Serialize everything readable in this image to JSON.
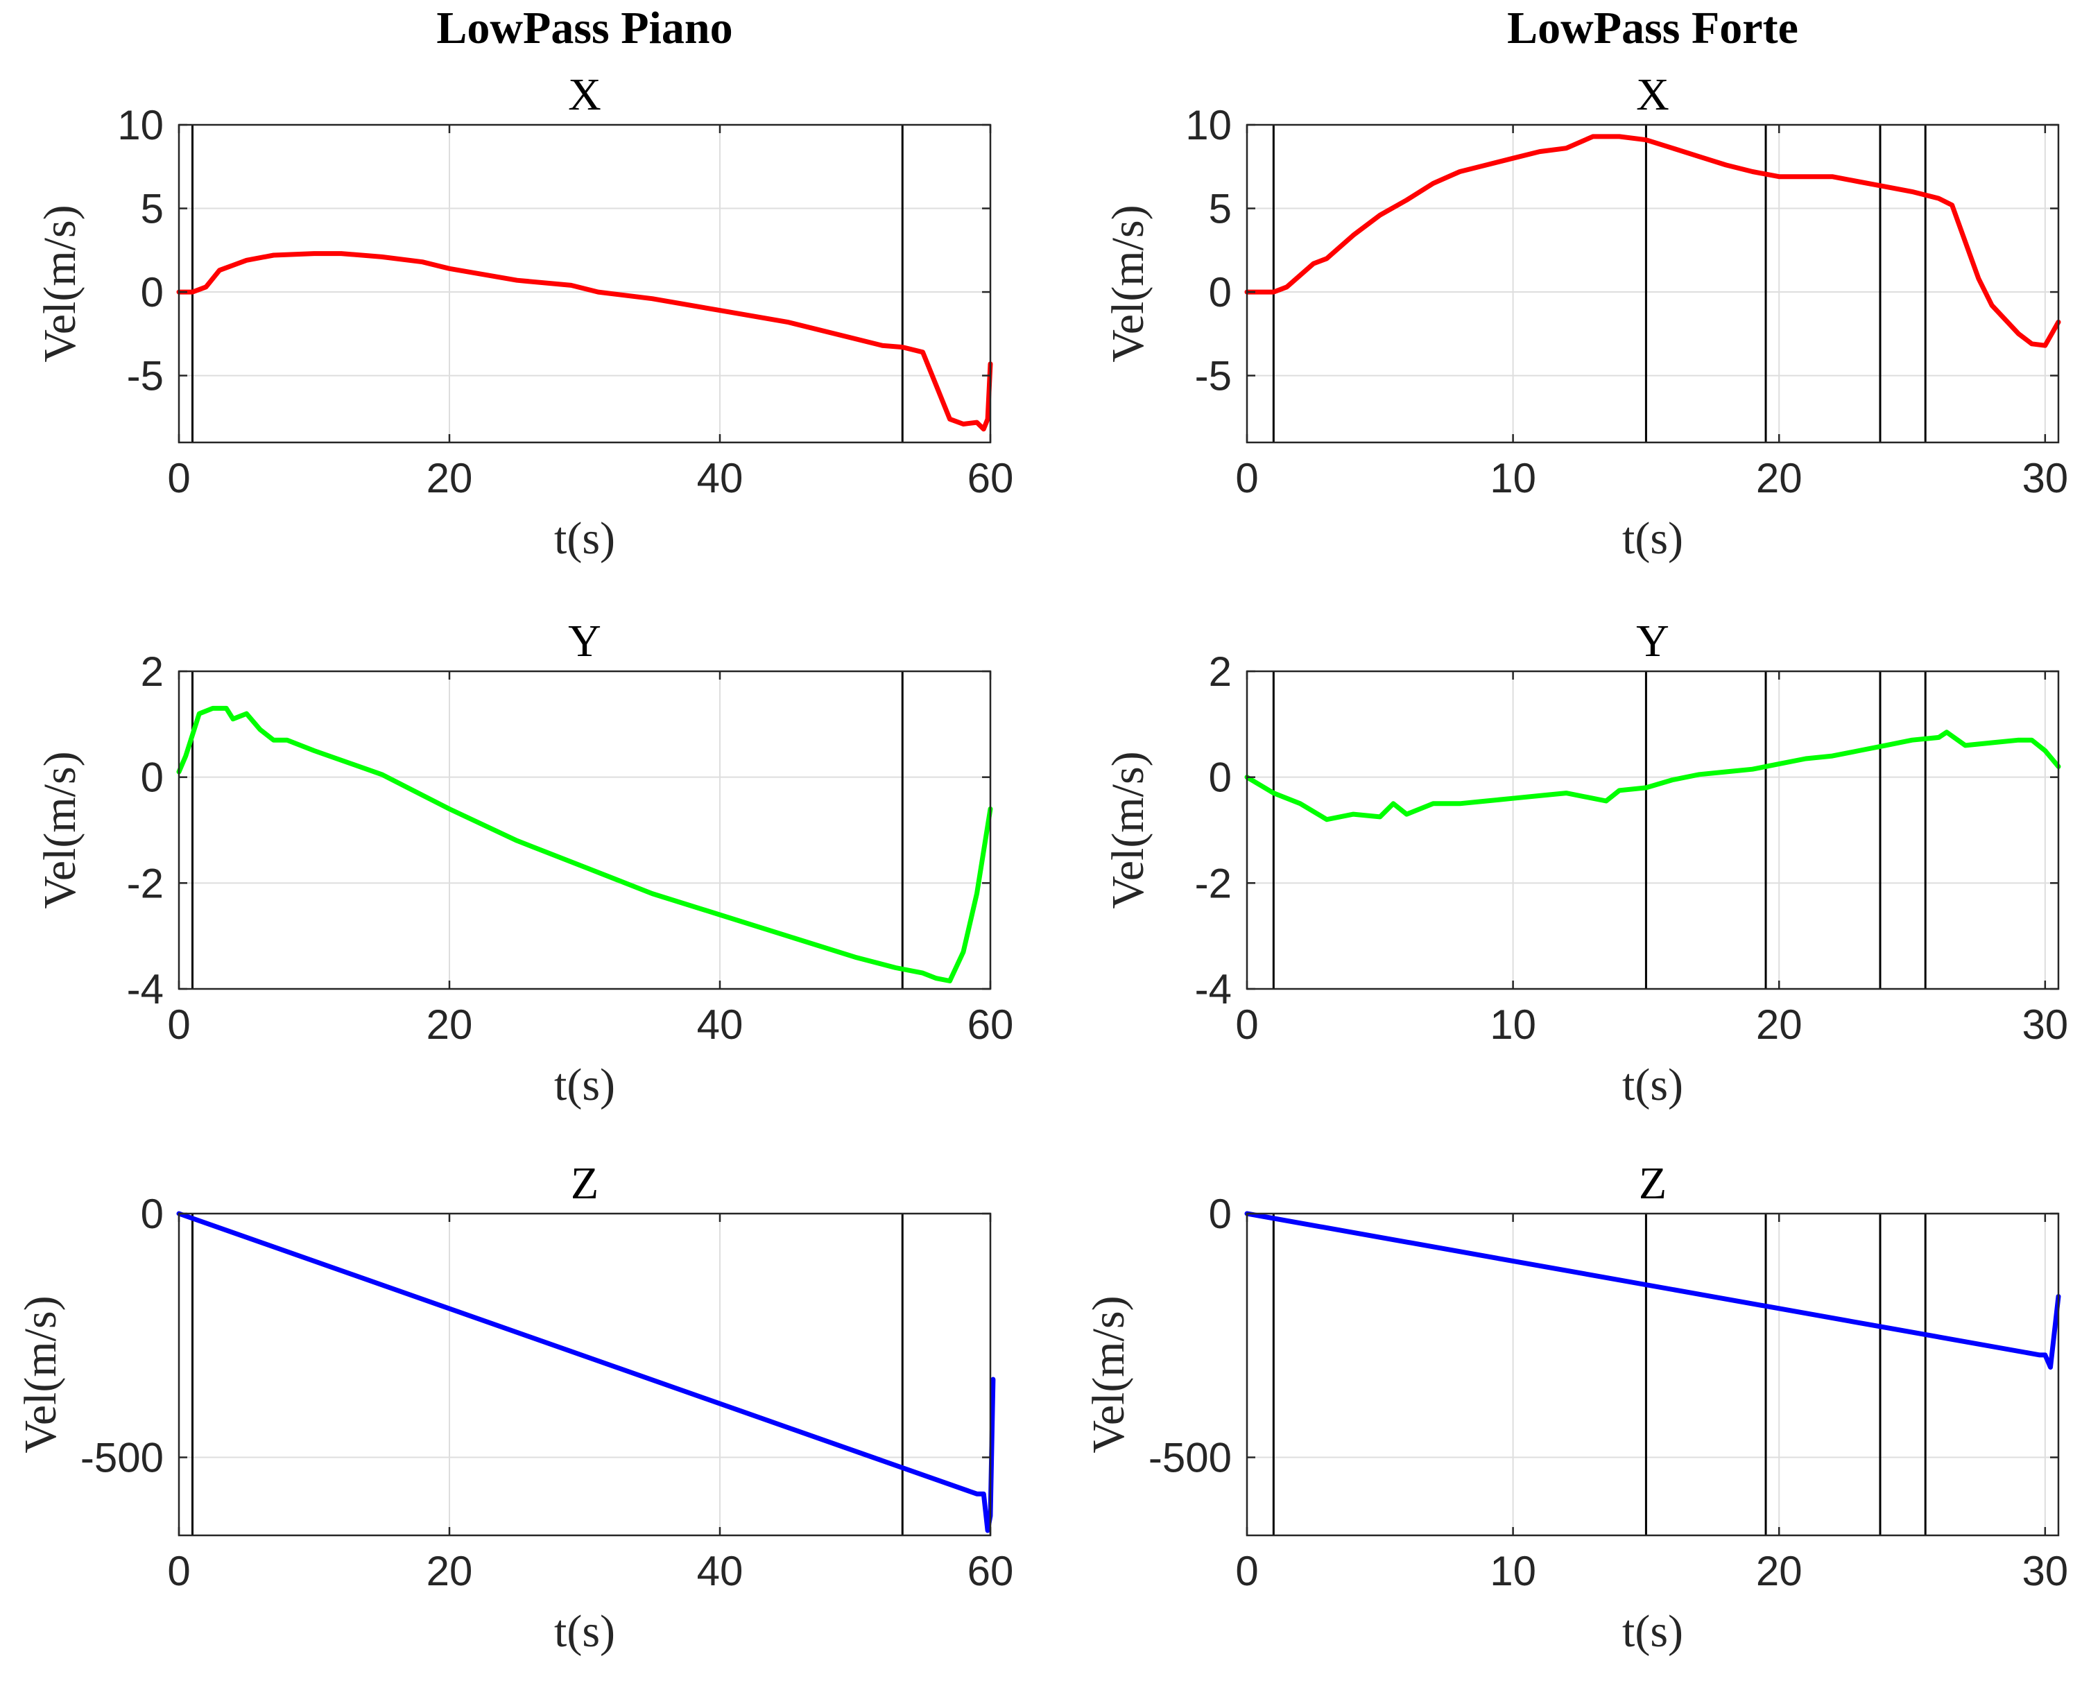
{
  "figure": {
    "column_titles": [
      "LowPass Piano",
      "LowPass Forte"
    ]
  },
  "chart_data": [
    {
      "type": "line",
      "column": 0,
      "row": 0,
      "title": "X",
      "xlabel": "t(s)",
      "ylabel": "Vel(m/s)",
      "xlim": [
        0,
        60
      ],
      "ylim": [
        -9,
        10
      ],
      "xticks": [
        0,
        20,
        40,
        60
      ],
      "yticks": [
        -5,
        0,
        5,
        10
      ],
      "grid": true,
      "vlines": [
        1,
        53.5
      ],
      "series": [
        {
          "color": "#ff0000",
          "x": [
            0,
            1,
            2,
            3,
            4,
            5,
            7,
            10,
            12,
            15,
            18,
            20,
            25,
            29,
            31,
            35,
            40,
            45,
            50,
            52,
            53.5,
            55,
            56,
            57,
            58,
            59,
            59.5,
            59.8,
            60
          ],
          "y": [
            0,
            0,
            0.3,
            1.3,
            1.6,
            1.9,
            2.2,
            2.3,
            2.3,
            2.1,
            1.8,
            1.4,
            0.7,
            0.4,
            0,
            -0.4,
            -1.1,
            -1.8,
            -2.8,
            -3.2,
            -3.3,
            -3.6,
            -5.6,
            -7.6,
            -7.9,
            -7.8,
            -8.2,
            -7.6,
            -4.3
          ]
        }
      ]
    },
    {
      "type": "line",
      "column": 1,
      "row": 0,
      "title": "X",
      "xlabel": "t(s)",
      "ylabel": "Vel(m/s)",
      "xlim": [
        0,
        30.5
      ],
      "ylim": [
        -9,
        10
      ],
      "xticks": [
        0,
        10,
        20,
        30
      ],
      "yticks": [
        -5,
        0,
        5,
        10
      ],
      "grid": true,
      "vlines": [
        1,
        15,
        19.5,
        23.8,
        25.5
      ],
      "series": [
        {
          "color": "#ff0000",
          "x": [
            0,
            1,
            1.5,
            2.5,
            3,
            4,
            5,
            6,
            7,
            8,
            9,
            10,
            11,
            12,
            13,
            14,
            15,
            16,
            17,
            18,
            19,
            20,
            21,
            22,
            23,
            24,
            25,
            26,
            26.5,
            27,
            27.5,
            28,
            29,
            29.5,
            30,
            30.5
          ],
          "y": [
            0,
            0,
            0.3,
            1.7,
            2,
            3.4,
            4.6,
            5.5,
            6.5,
            7.2,
            7.6,
            8,
            8.4,
            8.6,
            9.3,
            9.3,
            9.1,
            8.6,
            8.1,
            7.6,
            7.2,
            6.9,
            6.9,
            6.9,
            6.6,
            6.3,
            6,
            5.6,
            5.2,
            3,
            0.8,
            -0.8,
            -2.5,
            -3.1,
            -3.2,
            -1.8
          ]
        }
      ]
    },
    {
      "type": "line",
      "column": 0,
      "row": 1,
      "title": "Y",
      "xlabel": "t(s)",
      "ylabel": "Vel(m/s)",
      "xlim": [
        0,
        60
      ],
      "ylim": [
        -4,
        2
      ],
      "xticks": [
        0,
        20,
        40,
        60
      ],
      "yticks": [
        -4,
        -2,
        0,
        2
      ],
      "grid": true,
      "vlines": [
        1,
        53.5
      ],
      "series": [
        {
          "color": "#00ff00",
          "x": [
            0,
            0.5,
            1.5,
            2.5,
            3.5,
            4,
            5,
            6,
            7,
            8,
            10,
            15,
            20,
            25,
            30,
            35,
            40,
            45,
            50,
            53,
            55,
            56,
            57,
            58,
            59,
            60
          ],
          "y": [
            0.1,
            0.4,
            1.2,
            1.3,
            1.3,
            1.1,
            1.2,
            0.9,
            0.7,
            0.7,
            0.5,
            0.05,
            -0.6,
            -1.2,
            -1.7,
            -2.2,
            -2.6,
            -3,
            -3.4,
            -3.6,
            -3.7,
            -3.8,
            -3.85,
            -3.3,
            -2.2,
            -0.6
          ]
        }
      ]
    },
    {
      "type": "line",
      "column": 1,
      "row": 1,
      "title": "Y",
      "xlabel": "t(s)",
      "ylabel": "Vel(m/s)",
      "xlim": [
        0,
        30.5
      ],
      "ylim": [
        -4,
        2
      ],
      "xticks": [
        0,
        10,
        20,
        30
      ],
      "yticks": [
        -4,
        -2,
        0,
        2
      ],
      "grid": true,
      "vlines": [
        1,
        15,
        19.5,
        23.8,
        25.5
      ],
      "series": [
        {
          "color": "#00ff00",
          "x": [
            0,
            1,
            2,
            3,
            4,
            5,
            5.5,
            6,
            7,
            8,
            9,
            10,
            11,
            12,
            13,
            13.5,
            14,
            15,
            16,
            17,
            18,
            19,
            20,
            21,
            22,
            23,
            24,
            25,
            26,
            26.3,
            27,
            28,
            29,
            29.5,
            30,
            30.5
          ],
          "y": [
            0,
            -0.3,
            -0.5,
            -0.8,
            -0.7,
            -0.75,
            -0.5,
            -0.7,
            -0.5,
            -0.5,
            -0.45,
            -0.4,
            -0.35,
            -0.3,
            -0.4,
            -0.45,
            -0.25,
            -0.2,
            -0.05,
            0.05,
            0.1,
            0.15,
            0.25,
            0.35,
            0.4,
            0.5,
            0.6,
            0.7,
            0.75,
            0.85,
            0.6,
            0.65,
            0.7,
            0.7,
            0.5,
            0.2
          ]
        }
      ]
    },
    {
      "type": "line",
      "column": 0,
      "row": 2,
      "title": "Z",
      "xlabel": "t(s)",
      "ylabel": "Vel(m/s)",
      "xlim": [
        0,
        60
      ],
      "ylim": [
        -660,
        0
      ],
      "xticks": [
        0,
        20,
        40,
        60
      ],
      "yticks": [
        -500,
        0
      ],
      "yticklabels": [
        "-500",
        "0"
      ],
      "grid": true,
      "vlines": [
        1,
        53.5
      ],
      "series": [
        {
          "color": "#0000ff",
          "x": [
            0,
            59,
            59.5,
            59.8,
            60,
            60.2
          ],
          "y": [
            0,
            -575,
            -575,
            -650,
            -620,
            -340
          ]
        }
      ]
    },
    {
      "type": "line",
      "column": 1,
      "row": 2,
      "title": "Z",
      "xlabel": "t(s)",
      "ylabel": "Vel(m/s)",
      "xlim": [
        0,
        30.5
      ],
      "ylim": [
        -660,
        0
      ],
      "xticks": [
        0,
        10,
        20,
        30
      ],
      "yticks": [
        -500,
        0
      ],
      "yticklabels": [
        "-500",
        "0"
      ],
      "grid": true,
      "vlines": [
        1,
        15,
        19.5,
        23.8,
        25.5
      ],
      "series": [
        {
          "color": "#0000ff",
          "x": [
            0,
            29.8,
            30.0,
            30.2,
            30.5
          ],
          "y": [
            0,
            -290,
            -290,
            -315,
            -170
          ]
        }
      ]
    }
  ]
}
